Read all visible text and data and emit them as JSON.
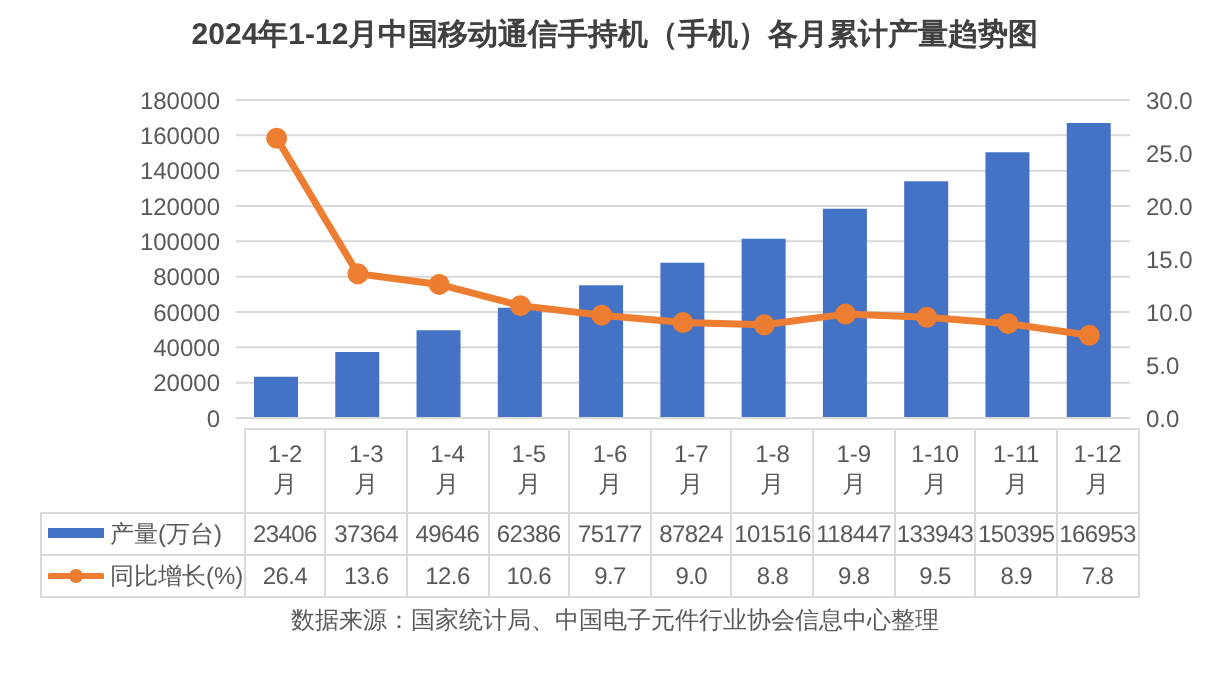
{
  "chart_data": {
    "type": "bar",
    "title": "2024年1-12月中国移动通信手持机（手机）各月累计产量趋势图",
    "categories": [
      "1-2月",
      "1-3月",
      "1-4月",
      "1-5月",
      "1-6月",
      "1-7月",
      "1-8月",
      "1-9月",
      "1-10月",
      "1-11月",
      "1-12月"
    ],
    "series": [
      {
        "name": "产量(万台)",
        "color": "#4472c4",
        "values": [
          23406,
          37364,
          49646,
          62386,
          75177,
          87824,
          101516,
          118447,
          133943,
          150395,
          166953
        ],
        "value_labels": [
          "23406",
          "37364",
          "49646",
          "62386",
          "75177",
          "87824",
          "101516",
          "118447",
          "133943",
          "150395",
          "166953"
        ]
      },
      {
        "name": "同比增长(%)",
        "type": "line",
        "axis": "y2",
        "color": "#ed7d31",
        "values": [
          26.4,
          13.6,
          12.6,
          10.6,
          9.7,
          9.0,
          8.8,
          9.8,
          9.5,
          8.9,
          7.8
        ],
        "value_labels": [
          "26.4",
          "13.6",
          "12.6",
          "10.6",
          "9.7",
          "9.0",
          "8.8",
          "9.8",
          "9.5",
          "8.9",
          "7.8"
        ]
      }
    ],
    "ylim": [
      0,
      180000
    ],
    "yticks": [
      0,
      20000,
      40000,
      60000,
      80000,
      100000,
      120000,
      140000,
      160000,
      180000
    ],
    "y2lim": [
      0,
      30
    ],
    "y2ticks": [
      {
        "value": 0,
        "label": "0.0"
      },
      {
        "value": 5,
        "label": "5.0"
      },
      {
        "value": 10,
        "label": "10.0"
      },
      {
        "value": 15,
        "label": "15.0"
      },
      {
        "value": 20,
        "label": "20.0"
      },
      {
        "value": 25,
        "label": "25.0"
      },
      {
        "value": 30,
        "label": "30.0"
      }
    ],
    "grid": "y",
    "legend": "bottom",
    "marker": "circle",
    "line_style": "solid",
    "annotations": [
      "数据来源：国家统计局、中国电子元件行业协会信息中心整理"
    ]
  }
}
